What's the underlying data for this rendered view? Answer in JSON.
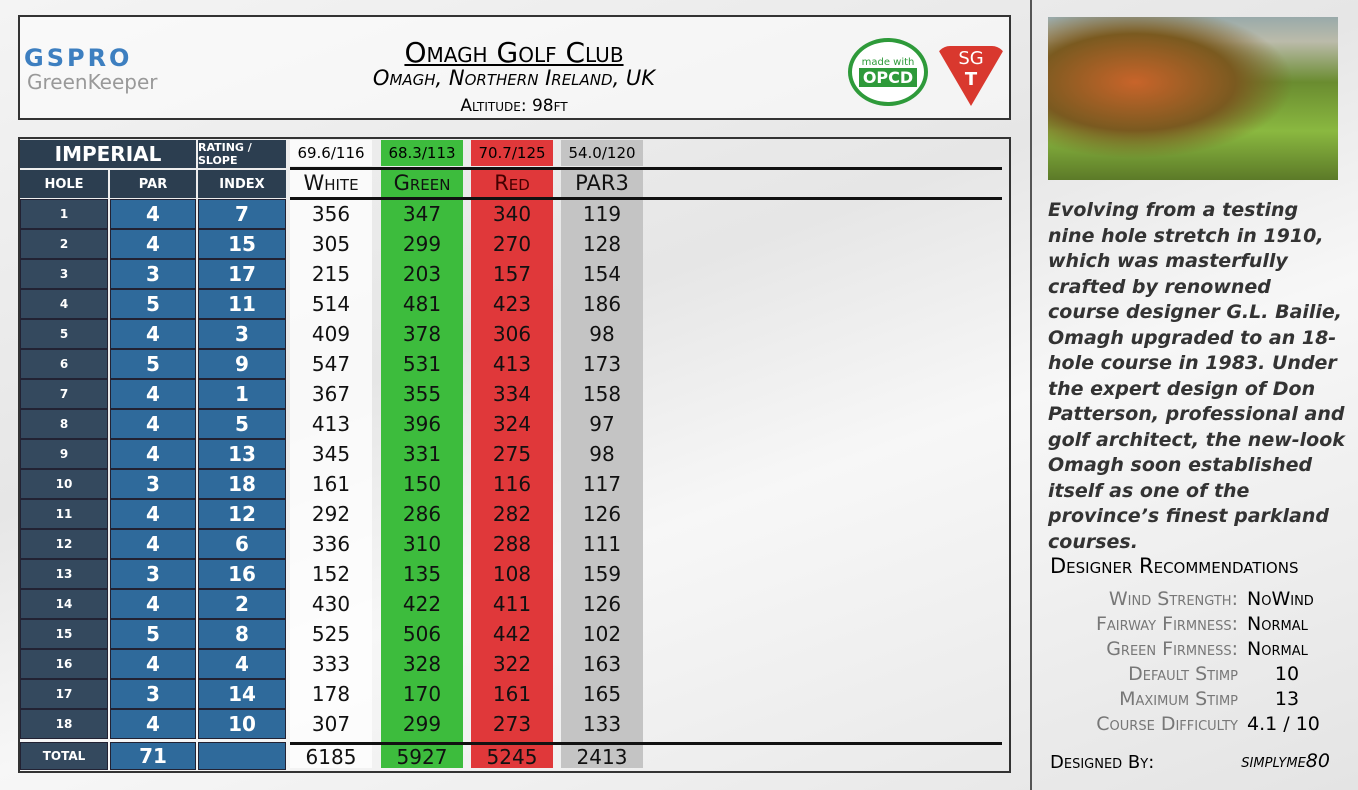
{
  "header": {
    "logo": {
      "name": "GSPRO",
      "sub": "GreenKeeper"
    },
    "title": "Omagh Golf Club",
    "subtitle": "Omagh, Northern Ireland, UK",
    "altitude": "Altitude: 98ft",
    "badges": {
      "made_with": "made with",
      "opcd": "OPCD",
      "sg": "SG",
      "t": "T"
    }
  },
  "table": {
    "system": "IMPERIAL",
    "rating_label": "RATING / SLOPE",
    "columns": [
      "HOLE",
      "PAR",
      "INDEX"
    ],
    "tees": [
      {
        "name": "White",
        "rating": "69.6/116"
      },
      {
        "name": "Green",
        "rating": "68.3/113"
      },
      {
        "name": "Red",
        "rating": "70.7/125"
      },
      {
        "name": "PAR3",
        "rating": "54.0/120"
      }
    ],
    "rows": [
      [
        1,
        4,
        7,
        356,
        347,
        340,
        119
      ],
      [
        2,
        4,
        15,
        305,
        299,
        270,
        128
      ],
      [
        3,
        3,
        17,
        215,
        203,
        157,
        154
      ],
      [
        4,
        5,
        11,
        514,
        481,
        423,
        186
      ],
      [
        5,
        4,
        3,
        409,
        378,
        306,
        98
      ],
      [
        6,
        5,
        9,
        547,
        531,
        413,
        173
      ],
      [
        7,
        4,
        1,
        367,
        355,
        334,
        158
      ],
      [
        8,
        4,
        5,
        413,
        396,
        324,
        97
      ],
      [
        9,
        4,
        13,
        345,
        331,
        275,
        98
      ],
      [
        10,
        3,
        18,
        161,
        150,
        116,
        117
      ],
      [
        11,
        4,
        12,
        292,
        286,
        282,
        126
      ],
      [
        12,
        4,
        6,
        336,
        310,
        288,
        111
      ],
      [
        13,
        3,
        16,
        152,
        135,
        108,
        159
      ],
      [
        14,
        4,
        2,
        430,
        422,
        411,
        126
      ],
      [
        15,
        5,
        8,
        525,
        506,
        442,
        102
      ],
      [
        16,
        4,
        4,
        333,
        328,
        322,
        163
      ],
      [
        17,
        3,
        14,
        178,
        170,
        161,
        165
      ],
      [
        18,
        4,
        10,
        307,
        299,
        273,
        133
      ]
    ],
    "total": {
      "label": "TOTAL",
      "par": 71,
      "yards": [
        6185,
        5927,
        5245,
        2413
      ]
    }
  },
  "side": {
    "description": "Evolving from a testing nine hole stretch in 1910, which was masterfully crafted by renowned course designer G.L. Bailie, Omagh upgraded to an 18-hole course in 1983. Under the expert design of Don Patterson, professional and golf architect, the new-look Omagh soon established itself as one of the province’s finest parkland courses.",
    "recommendations_title": "Designer Recommendations",
    "recommendations": [
      {
        "label": "Wind Strength:",
        "value": "NoWind"
      },
      {
        "label": "Fairway Firmness:",
        "value": "Normal"
      },
      {
        "label": "Green Firmness:",
        "value": "Normal"
      },
      {
        "label": "Default Stimp",
        "value": "10"
      },
      {
        "label": "Maximum Stimp",
        "value": "13"
      },
      {
        "label": "Course Difficulty",
        "value": "4.1 / 10"
      }
    ],
    "designed_by_label": "Designed By:",
    "designer": "simplyme80"
  }
}
